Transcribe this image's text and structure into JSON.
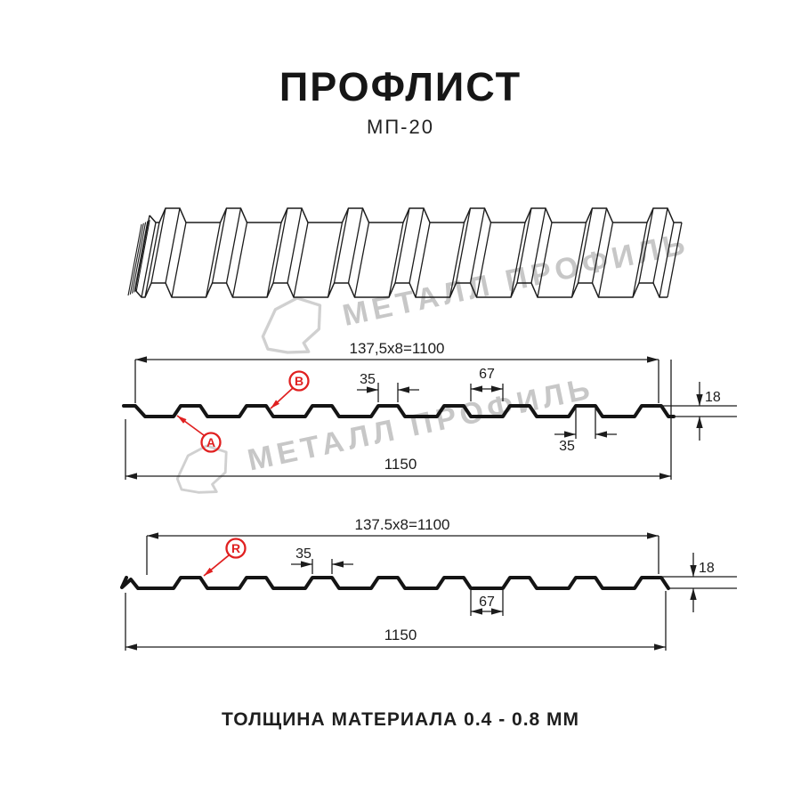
{
  "header": {
    "title": "ПРОФЛИСТ",
    "subtitle": "МП-20"
  },
  "footer": {
    "text": "ТОЛЩИНА МАТЕРИАЛА 0.4 - 0.8 ММ"
  },
  "watermark": {
    "brand": "МЕТАЛЛ ПРОФИЛЬ"
  },
  "colors": {
    "accent_red": "#e02020",
    "line_black": "#1c1c1c",
    "watermark_gray": "#c7c7c7"
  },
  "sections": {
    "top": {
      "coverage": "137,5x8=1100",
      "overall": "1150",
      "rib_top": "35",
      "valley": "67",
      "rib_top_lower": "35",
      "height": "18",
      "label_a": "A",
      "label_b": "B"
    },
    "bottom": {
      "coverage": "137.5x8=1100",
      "overall": "1150",
      "rib_top": "35",
      "valley": "67",
      "height": "18",
      "label_r": "R"
    }
  }
}
